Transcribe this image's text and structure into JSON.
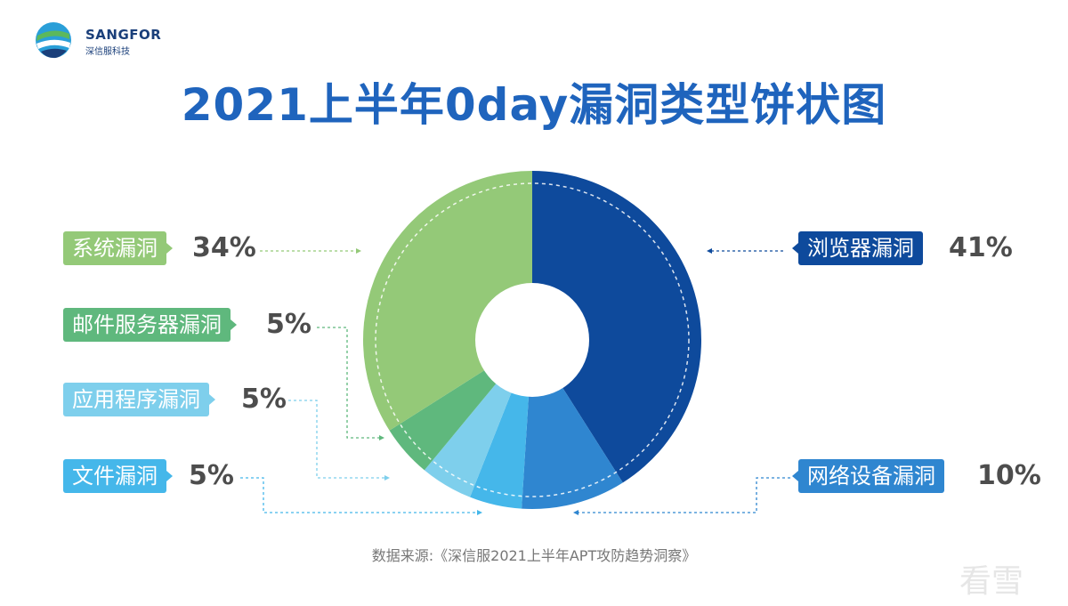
{
  "brand": {
    "name_en": "SANGFOR",
    "name_zh": "深信服科技"
  },
  "colors": {
    "title": "#1f64bd",
    "browser": "#0e4a9c",
    "network": "#2f86d0",
    "file": "#45b7ea",
    "app": "#7ecfec",
    "mail": "#5fb87d",
    "system": "#94c978"
  },
  "chart_data": {
    "type": "pie",
    "title": "2021上半年0day漏洞类型饼状图",
    "donut": true,
    "slices": [
      {
        "key": "browser",
        "label": "浏览器漏洞",
        "value": 41,
        "pct_label": "41%",
        "color": "#0e4a9c"
      },
      {
        "key": "network",
        "label": "网络设备漏洞",
        "value": 10,
        "pct_label": "10%",
        "color": "#2f86d0"
      },
      {
        "key": "file",
        "label": "文件漏洞",
        "value": 5,
        "pct_label": "5%",
        "color": "#45b7ea"
      },
      {
        "key": "app",
        "label": "应用程序漏洞",
        "value": 5,
        "pct_label": "5%",
        "color": "#7ecfec"
      },
      {
        "key": "mail",
        "label": "邮件服务器漏洞",
        "value": 5,
        "pct_label": "5%",
        "color": "#5fb87d"
      },
      {
        "key": "system",
        "label": "系统漏洞",
        "value": 34,
        "pct_label": "34%",
        "color": "#94c978"
      }
    ],
    "source": "数据来源:《深信服2021上半年APT攻防趋势洞察》"
  },
  "watermark": "看雪"
}
